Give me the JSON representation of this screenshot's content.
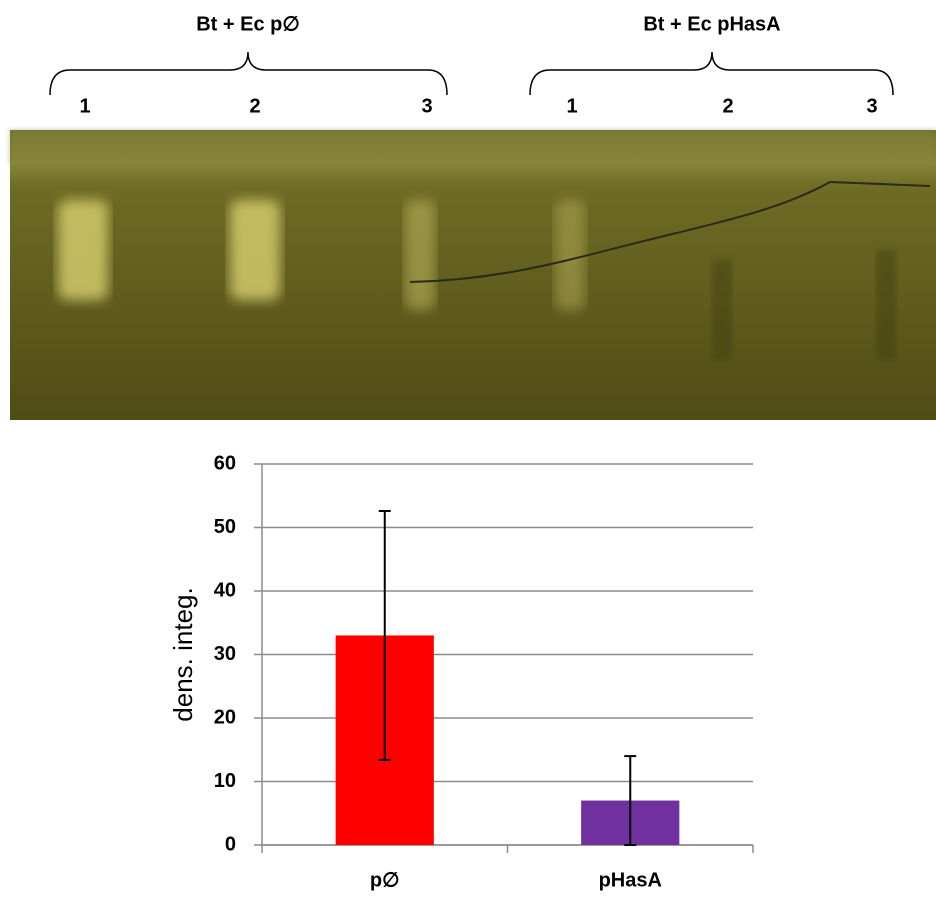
{
  "gel": {
    "groups": [
      {
        "title": "Bt + Ec p∅",
        "lanes": [
          "1",
          "2",
          "3"
        ]
      },
      {
        "title": "Bt + Ec pHasA",
        "lanes": [
          "1",
          "2",
          "3"
        ]
      }
    ]
  },
  "chart_data": {
    "type": "bar",
    "ylabel": "dens. integ.",
    "categories": [
      "p∅",
      "pHasA"
    ],
    "values": [
      33,
      7
    ],
    "errors": [
      19.6,
      7
    ],
    "colors": [
      "#ff0000",
      "#7030a0"
    ],
    "ylim": [
      0,
      60
    ],
    "yticks": [
      0,
      10,
      20,
      30,
      40,
      50,
      60
    ],
    "grid": true
  }
}
